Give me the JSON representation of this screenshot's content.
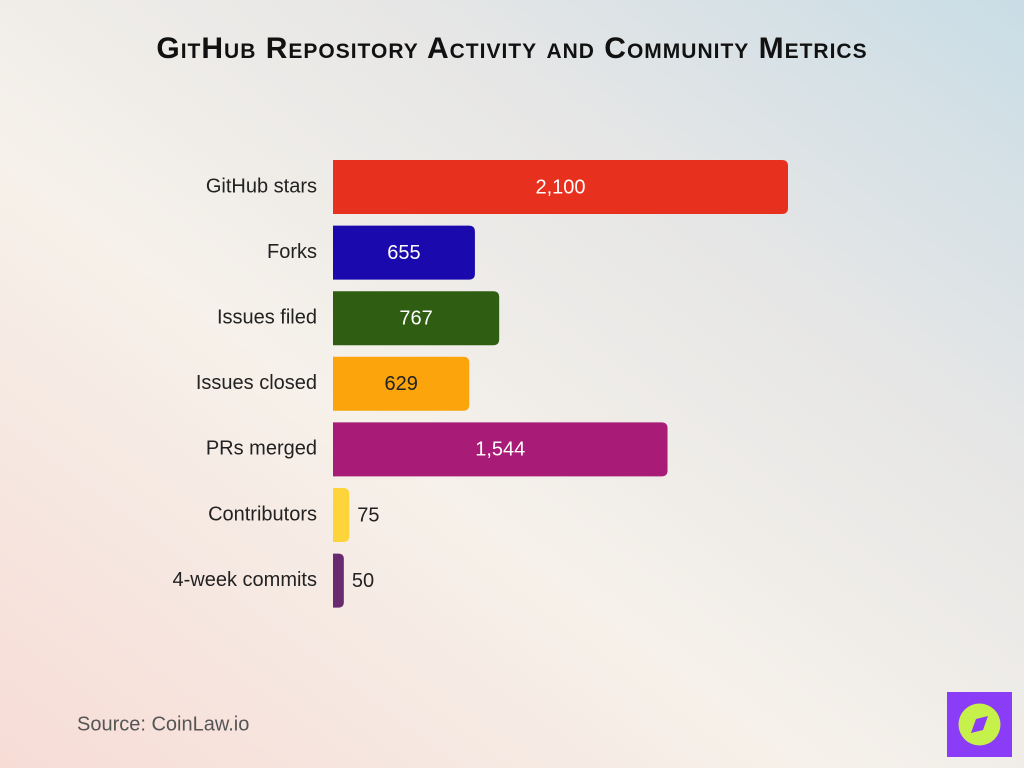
{
  "chart_data": {
    "type": "bar",
    "orientation": "horizontal",
    "title": "GitHub Repository Activity and Community Metrics",
    "categories": [
      "GitHub stars",
      "Forks",
      "Issues filed",
      "Issues closed",
      "PRs merged",
      "Contributors",
      "4-week commits"
    ],
    "values": [
      2100,
      655,
      767,
      629,
      1544,
      75,
      50
    ],
    "value_labels": [
      "2,100",
      "655",
      "767",
      "629",
      "1,544",
      "75",
      "50"
    ],
    "colors": [
      "#e8301f",
      "#1a0aad",
      "#2f5e12",
      "#fba40c",
      "#a81b76",
      "#fdd43a",
      "#6a2a70"
    ]
  },
  "source": "Source: CoinLaw.io"
}
